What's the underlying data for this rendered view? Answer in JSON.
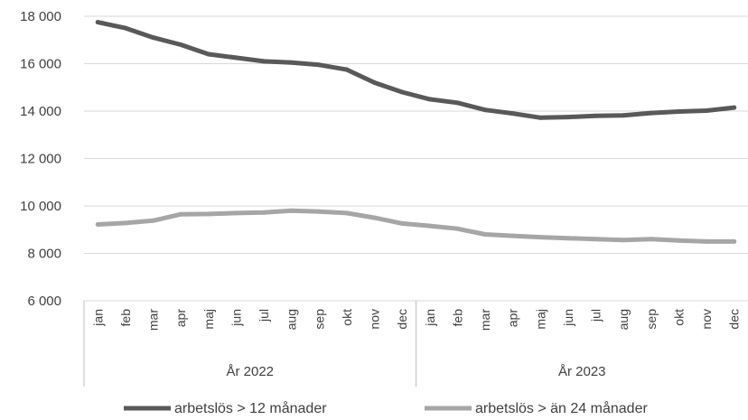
{
  "chart_data": {
    "type": "line",
    "title": "",
    "xlabel": "",
    "ylabel": "",
    "ylim": [
      6000,
      18000
    ],
    "yticks": [
      6000,
      8000,
      10000,
      12000,
      14000,
      16000,
      18000
    ],
    "ytick_labels": [
      "6 000",
      "8 000",
      "10 000",
      "12 000",
      "14 000",
      "16 000",
      "18 000"
    ],
    "grid": true,
    "legend_position": "bottom",
    "categories": [
      "jan",
      "feb",
      "mar",
      "apr",
      "maj",
      "jun",
      "jul",
      "aug",
      "sep",
      "okt",
      "nov",
      "dec",
      "jan",
      "feb",
      "mar",
      "apr",
      "maj",
      "jun",
      "jul",
      "aug",
      "sep",
      "okt",
      "nov",
      "dec"
    ],
    "groups": [
      {
        "label": "År 2022",
        "count": 12
      },
      {
        "label": "År 2023",
        "count": 12
      }
    ],
    "series": [
      {
        "name": "arbetslös > 12 månader",
        "color": "#595959",
        "values": [
          17750,
          17500,
          17100,
          16800,
          16400,
          16250,
          16100,
          16050,
          15950,
          15750,
          15200,
          14800,
          14500,
          14350,
          14050,
          13900,
          13720,
          13750,
          13800,
          13820,
          13920,
          13980,
          14020,
          14150
        ]
      },
      {
        "name": "arbetslös > än 24 månader",
        "color": "#a6a6a6",
        "values": [
          9220,
          9280,
          9380,
          9650,
          9660,
          9700,
          9720,
          9800,
          9760,
          9700,
          9500,
          9260,
          9160,
          9040,
          8800,
          8740,
          8680,
          8640,
          8600,
          8560,
          8600,
          8540,
          8500,
          8500
        ]
      }
    ]
  }
}
